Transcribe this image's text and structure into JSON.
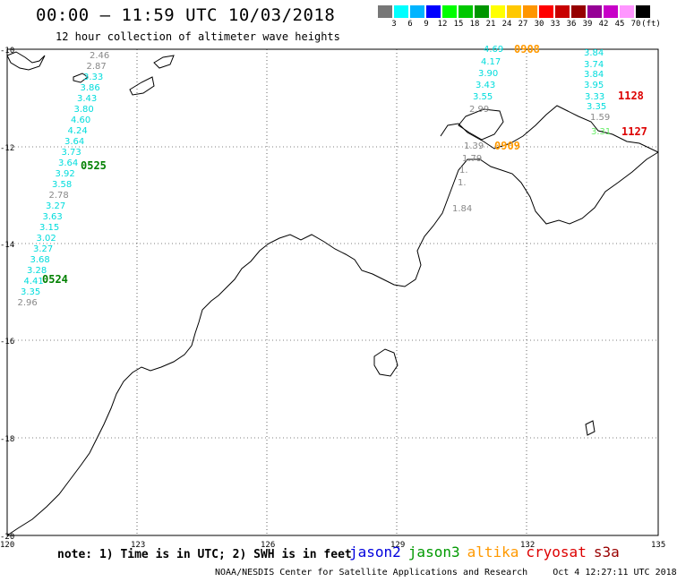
{
  "title": "00:00 – 11:59 UTC 10/03/2018",
  "subtitle": "12 hour collection of altimeter wave heights",
  "colorbar": {
    "unit": "(ft)",
    "colors": [
      "#777777",
      "#00ffff",
      "#00b4ff",
      "#0000ff",
      "#00ff00",
      "#00c800",
      "#009600",
      "#ffff00",
      "#ffc800",
      "#ff9600",
      "#ff0000",
      "#c80000",
      "#960000",
      "#960096",
      "#c800c8",
      "#ff96ff",
      "#000000"
    ],
    "labels": [
      "3",
      "6",
      "9",
      "12",
      "15",
      "18",
      "21",
      "24",
      "27",
      "30",
      "33",
      "36",
      "39",
      "42",
      "45",
      "70"
    ]
  },
  "axes": {
    "lon_ticks": [
      "120",
      "123",
      "126",
      "129",
      "132",
      "135"
    ],
    "lat_ticks": [
      "-10",
      "-12",
      "-14",
      "-16",
      "-18",
      "-20"
    ]
  },
  "tracks": [
    {
      "id": "track-west",
      "readings": [
        {
          "v": "2.46",
          "c": "#888888"
        },
        {
          "v": "2.87",
          "c": "#888888"
        },
        {
          "v": "3.33",
          "c": "#00dcdc"
        },
        {
          "v": "3.86",
          "c": "#00dcdc"
        },
        {
          "v": "3.43",
          "c": "#00dcdc"
        },
        {
          "v": "3.80",
          "c": "#00dcdc"
        },
        {
          "v": "4.60",
          "c": "#00dcdc"
        },
        {
          "v": "4.24",
          "c": "#00dcdc"
        },
        {
          "v": "3.64",
          "c": "#00dcdc"
        },
        {
          "v": "3.73",
          "c": "#00dcdc"
        },
        {
          "v": "3.64",
          "c": "#00dcdc"
        },
        {
          "v": "3.92",
          "c": "#00dcdc"
        },
        {
          "v": "3.58",
          "c": "#00dcdc"
        },
        {
          "v": "2.78",
          "c": "#888888"
        },
        {
          "v": "3.27",
          "c": "#00dcdc"
        },
        {
          "v": "3.63",
          "c": "#00dcdc"
        },
        {
          "v": "3.15",
          "c": "#00dcdc"
        },
        {
          "v": "3.02",
          "c": "#00dcdc"
        },
        {
          "v": "3.27",
          "c": "#00dcdc"
        },
        {
          "v": "3.68",
          "c": "#00dcdc"
        },
        {
          "v": "3.28",
          "c": "#00dcdc"
        },
        {
          "v": "4.41",
          "c": "#00dcdc"
        },
        {
          "v": "3.35",
          "c": "#00dcdc"
        },
        {
          "v": "2.96",
          "c": "#888888"
        }
      ]
    },
    {
      "id": "track-mid",
      "readings": [
        {
          "v": "4.69",
          "c": "#00dcdc"
        },
        {
          "v": "4.17",
          "c": "#00dcdc"
        },
        {
          "v": "3.90",
          "c": "#00dcdc"
        },
        {
          "v": "3.43",
          "c": "#00dcdc"
        },
        {
          "v": "3.55",
          "c": "#00dcdc"
        },
        {
          "v": "2.99",
          "c": "#888888"
        },
        {
          "v": "1.39",
          "c": "#888888"
        },
        {
          "v": "1.79",
          "c": "#888888"
        },
        {
          "v": "1.",
          "c": "#888888"
        },
        {
          "v": "1.",
          "c": "#888888"
        },
        {
          "v": "1.84",
          "c": "#888888"
        }
      ]
    },
    {
      "id": "track-east",
      "readings": [
        {
          "v": "3.84",
          "c": "#00dcdc"
        },
        {
          "v": "3.74",
          "c": "#00dcdc"
        },
        {
          "v": "3.84",
          "c": "#00dcdc"
        },
        {
          "v": "3.95",
          "c": "#00dcdc"
        },
        {
          "v": "3.33",
          "c": "#00dcdc"
        },
        {
          "v": "3.35",
          "c": "#00dcdc"
        },
        {
          "v": "1.59",
          "c": "#888888"
        },
        {
          "v": "3.31",
          "c": "#66ee66"
        }
      ]
    }
  ],
  "pass_labels": [
    {
      "text": "0525",
      "color": "#008000"
    },
    {
      "text": "0524",
      "color": "#008000"
    },
    {
      "text": "0908",
      "color": "#ff9900"
    },
    {
      "text": "0909",
      "color": "#ff9900"
    },
    {
      "text": "1128",
      "color": "#dd0000"
    },
    {
      "text": "1127",
      "color": "#dd0000"
    }
  ],
  "note": "note:  1) Time is in UTC;  2) SWH is in feet",
  "legend": [
    {
      "name": "jason2",
      "color": "#0000dd"
    },
    {
      "name": "jason3",
      "color": "#009900"
    },
    {
      "name": "altika",
      "color": "#ff9900"
    },
    {
      "name": "cryosat",
      "color": "#dd0000"
    },
    {
      "name": "s3a",
      "color": "#990000"
    }
  ],
  "footer": {
    "credit": "NOAA/NESDIS Center for Satellite Applications and Research",
    "timestamp": "Oct  4 12:27:11 UTC 2018"
  }
}
